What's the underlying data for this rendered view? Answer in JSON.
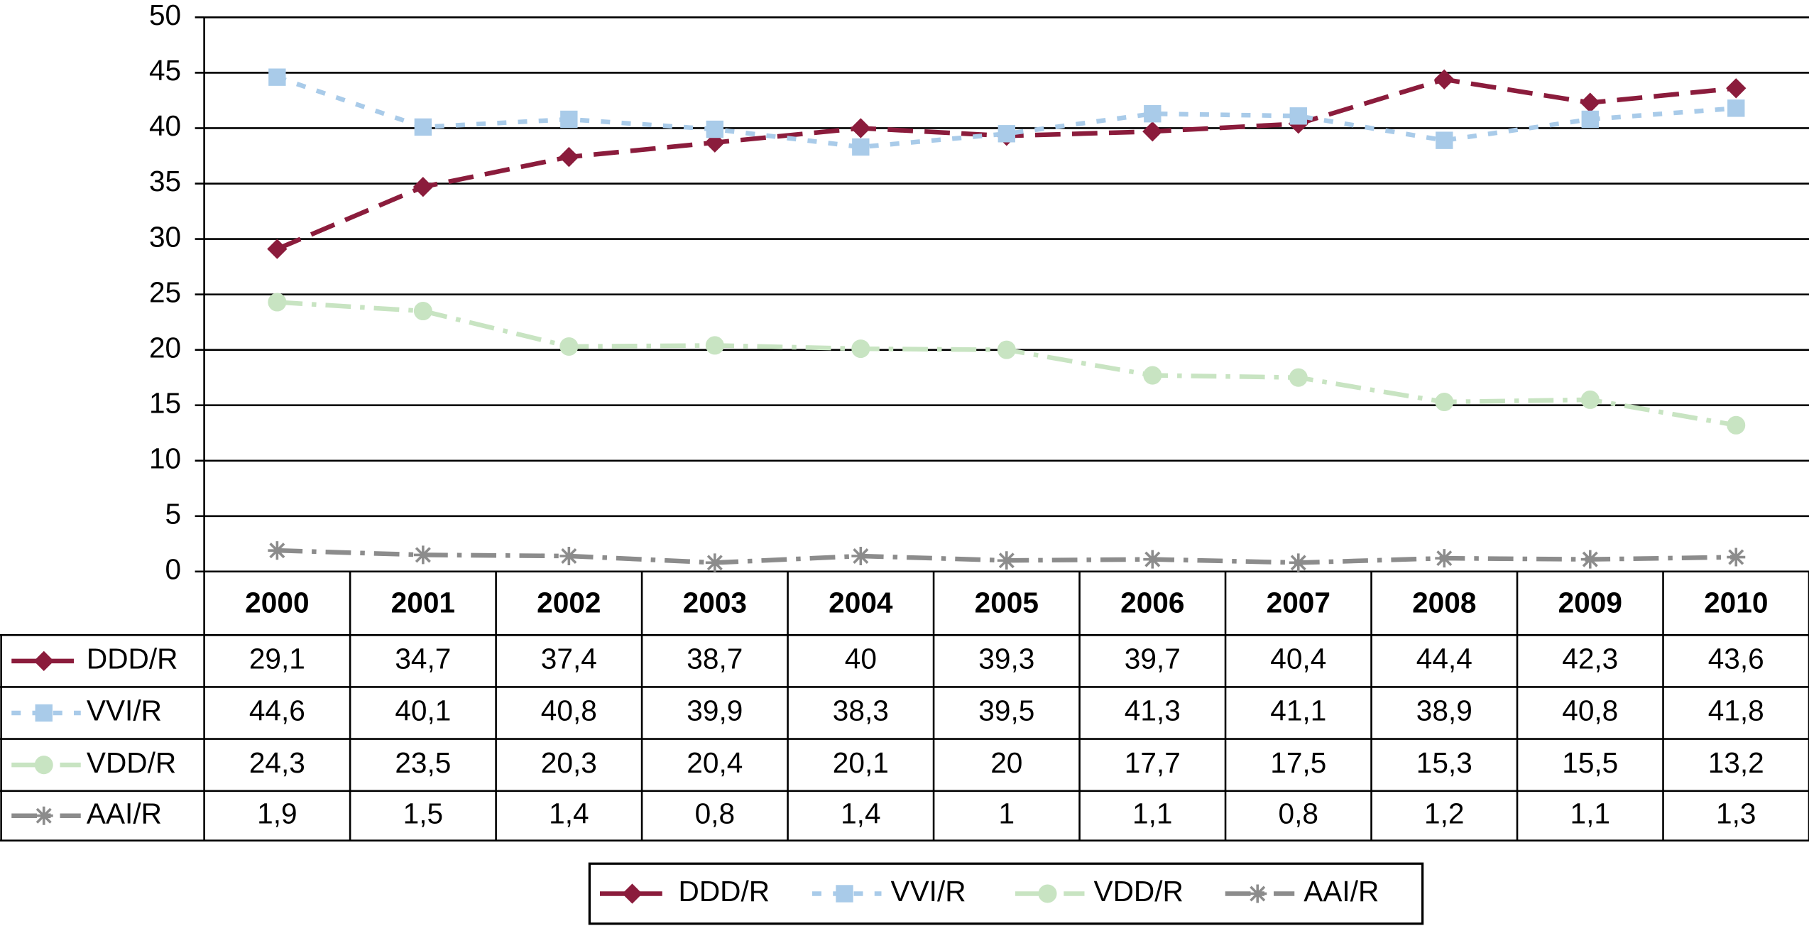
{
  "chart_data": {
    "type": "line",
    "categories": [
      "2000",
      "2001",
      "2002",
      "2003",
      "2004",
      "2005",
      "2006",
      "2007",
      "2008",
      "2009",
      "2010"
    ],
    "ylim": [
      0,
      50
    ],
    "yticks": [
      0,
      5,
      10,
      15,
      20,
      25,
      30,
      35,
      40,
      45,
      50
    ],
    "grid": true,
    "series": [
      {
        "name": "DDD/R",
        "color": "#8b1c3c",
        "marker": "diamond",
        "dash": "long",
        "values": [
          29.1,
          34.7,
          37.4,
          38.7,
          40,
          39.3,
          39.7,
          40.4,
          44.4,
          42.3,
          43.6
        ],
        "value_labels": [
          "29,1",
          "34,7",
          "37,4",
          "38,7",
          "40",
          "39,3",
          "39,7",
          "40,4",
          "44,4",
          "42,3",
          "43,6"
        ]
      },
      {
        "name": "VVI/R",
        "color": "#a9cbe9",
        "marker": "square",
        "dash": "short",
        "values": [
          44.6,
          40.1,
          40.8,
          39.9,
          38.3,
          39.5,
          41.3,
          41.1,
          38.9,
          40.8,
          41.8
        ],
        "value_labels": [
          "44,6",
          "40,1",
          "40,8",
          "39,9",
          "38,3",
          "39,5",
          "41,3",
          "41,1",
          "38,9",
          "40,8",
          "41,8"
        ]
      },
      {
        "name": "VDD/R",
        "color": "#c8e4c2",
        "marker": "circle",
        "dash": "dashdot",
        "values": [
          24.3,
          23.5,
          20.3,
          20.4,
          20.1,
          20,
          17.7,
          17.5,
          15.3,
          15.5,
          13.2
        ],
        "value_labels": [
          "24,3",
          "23,5",
          "20,3",
          "20,4",
          "20,1",
          "20",
          "17,7",
          "17,5",
          "15,3",
          "15,5",
          "13,2"
        ]
      },
      {
        "name": "AAI/R",
        "color": "#8c8c8c",
        "marker": "star",
        "dash": "dashdot",
        "values": [
          1.9,
          1.5,
          1.4,
          0.8,
          1.4,
          1,
          1.1,
          0.8,
          1.2,
          1.1,
          1.3
        ],
        "value_labels": [
          "1,9",
          "1,5",
          "1,4",
          "0,8",
          "1,4",
          "1",
          "1,1",
          "0,8",
          "1,2",
          "1,1",
          "1,3"
        ]
      }
    ]
  }
}
